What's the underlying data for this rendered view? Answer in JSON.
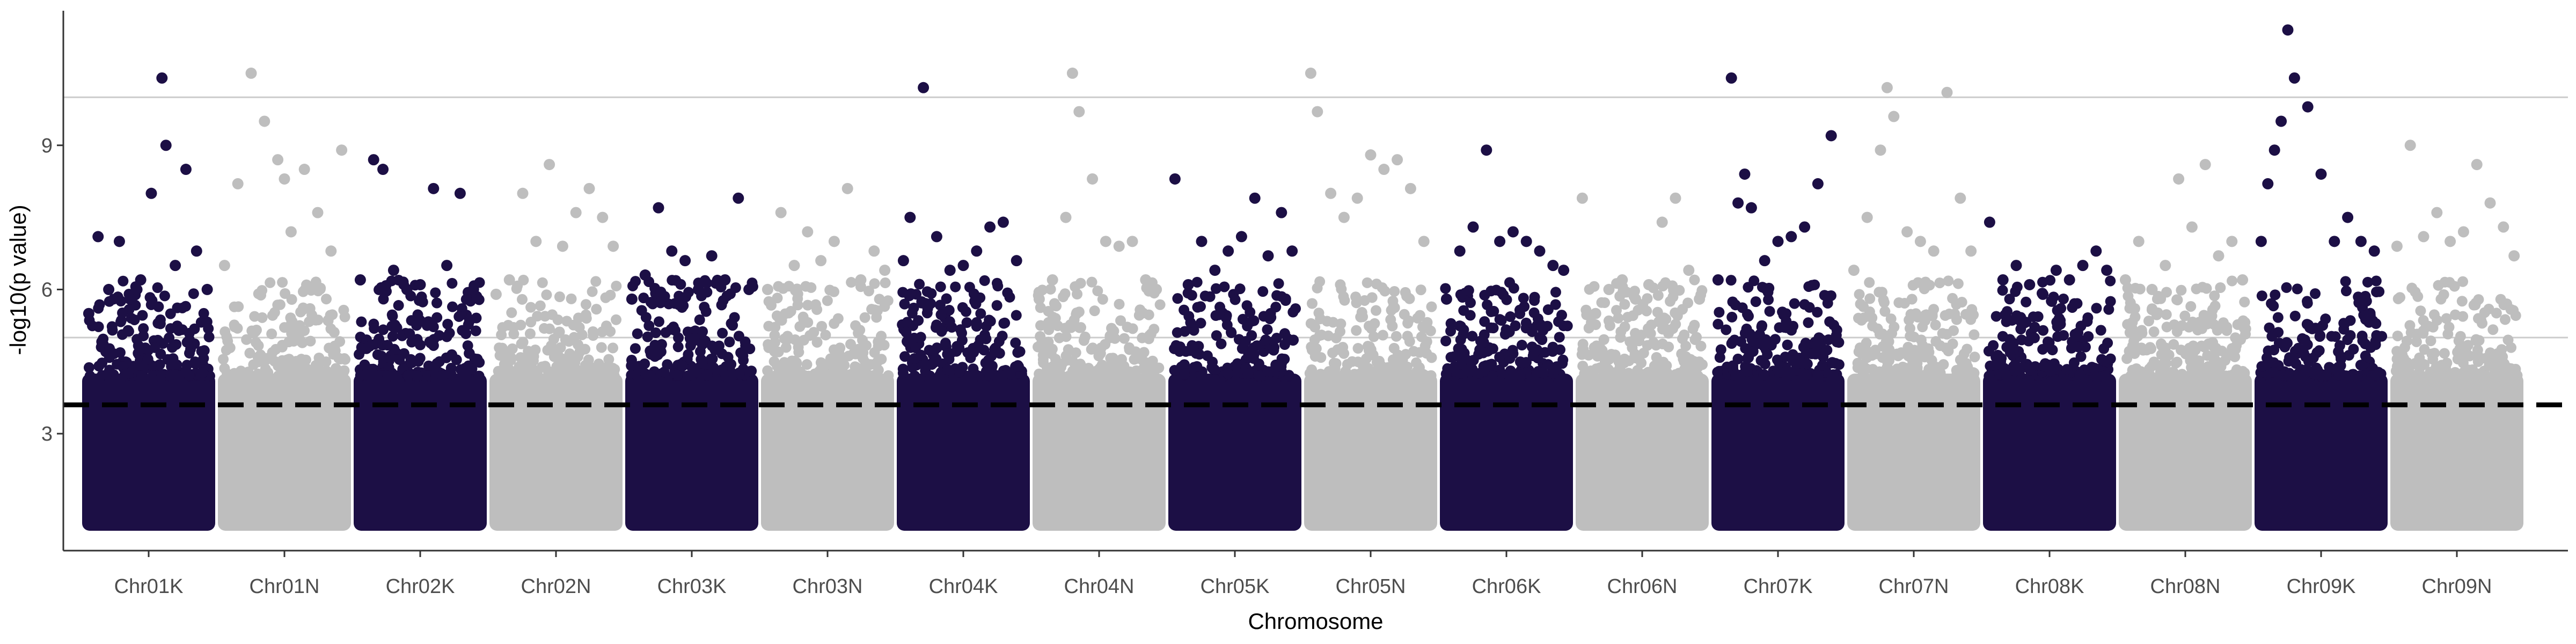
{
  "chart_data": {
    "type": "scatter",
    "subtype": "manhattan",
    "title": "",
    "xlabel": "Chromosome",
    "ylabel": "-log10(p value)",
    "ylim": [
      0.6,
      11.8
    ],
    "yticks": [
      3,
      6,
      9
    ],
    "grid": false,
    "legend": "none",
    "colors": {
      "dark": "#1c0f45",
      "light": "#bebebe"
    },
    "reference_lines": [
      {
        "y": 10,
        "style": "solid",
        "color": "#cccccc"
      },
      {
        "y": 5,
        "style": "solid",
        "color": "#cccccc"
      },
      {
        "y": 3.6,
        "style": "dashed",
        "color": "#000000"
      }
    ],
    "categories": [
      "Chr01K",
      "Chr01N",
      "Chr02K",
      "Chr02N",
      "Chr03K",
      "Chr03N",
      "Chr04K",
      "Chr04N",
      "Chr05K",
      "Chr05N",
      "Chr06K",
      "Chr06N",
      "Chr07K",
      "Chr07N",
      "Chr08K",
      "Chr08N",
      "Chr09K",
      "Chr09N"
    ],
    "series": [
      {
        "name": "Chr01K",
        "color": "dark",
        "x": [
          0.05,
          0.12,
          0.2,
          0.28,
          0.36,
          0.44,
          0.52,
          0.6,
          0.63,
          0.7,
          0.78,
          0.86,
          0.94
        ],
        "y": [
          5.5,
          7.1,
          6.0,
          7.0,
          5.8,
          6.2,
          8.0,
          10.4,
          9.0,
          6.5,
          8.5,
          6.8,
          6.0
        ]
      },
      {
        "name": "Chr01N",
        "color": "light",
        "x": [
          0.05,
          0.15,
          0.25,
          0.35,
          0.45,
          0.5,
          0.55,
          0.65,
          0.75,
          0.85,
          0.93
        ],
        "y": [
          6.5,
          8.2,
          10.5,
          9.5,
          8.7,
          8.3,
          7.2,
          8.5,
          7.6,
          6.8,
          8.9
        ]
      },
      {
        "name": "Chr02K",
        "color": "dark",
        "x": [
          0.05,
          0.15,
          0.22,
          0.3,
          0.4,
          0.5,
          0.6,
          0.7,
          0.8,
          0.9
        ],
        "y": [
          6.2,
          8.7,
          8.5,
          6.4,
          6.0,
          6.1,
          8.1,
          6.5,
          8.0,
          6.0
        ]
      },
      {
        "name": "Chr02N",
        "color": "light",
        "x": [
          0.05,
          0.15,
          0.25,
          0.35,
          0.45,
          0.55,
          0.65,
          0.75,
          0.85,
          0.93
        ],
        "y": [
          5.9,
          6.2,
          8.0,
          7.0,
          8.6,
          6.9,
          7.6,
          8.1,
          7.5,
          6.9
        ]
      },
      {
        "name": "Chr03K",
        "color": "dark",
        "x": [
          0.05,
          0.15,
          0.25,
          0.35,
          0.45,
          0.55,
          0.65,
          0.75,
          0.85,
          0.93
        ],
        "y": [
          5.8,
          6.3,
          7.7,
          6.8,
          6.6,
          6.0,
          6.7,
          6.2,
          7.9,
          6.0
        ]
      },
      {
        "name": "Chr03N",
        "color": "light",
        "x": [
          0.05,
          0.15,
          0.25,
          0.35,
          0.45,
          0.55,
          0.65,
          0.75,
          0.85,
          0.93
        ],
        "y": [
          6.0,
          7.6,
          6.5,
          7.2,
          6.6,
          7.0,
          8.1,
          6.2,
          6.8,
          6.4
        ]
      },
      {
        "name": "Chr04K",
        "color": "dark",
        "x": [
          0.05,
          0.1,
          0.2,
          0.3,
          0.4,
          0.5,
          0.6,
          0.7,
          0.8,
          0.9
        ],
        "y": [
          6.6,
          7.5,
          10.2,
          7.1,
          6.4,
          6.5,
          6.8,
          7.3,
          7.4,
          6.6
        ]
      },
      {
        "name": "Chr04N",
        "color": "light",
        "x": [
          0.05,
          0.15,
          0.25,
          0.3,
          0.35,
          0.45,
          0.55,
          0.65,
          0.75,
          0.85,
          0.93
        ],
        "y": [
          5.8,
          6.2,
          7.5,
          10.5,
          9.7,
          8.3,
          7.0,
          6.9,
          7.0,
          6.2,
          6.0
        ]
      },
      {
        "name": "Chr05K",
        "color": "dark",
        "x": [
          0.05,
          0.15,
          0.25,
          0.35,
          0.45,
          0.55,
          0.65,
          0.75,
          0.85,
          0.93
        ],
        "y": [
          8.3,
          6.1,
          7.0,
          6.4,
          6.8,
          7.1,
          7.9,
          6.7,
          7.6,
          6.8
        ]
      },
      {
        "name": "Chr05N",
        "color": "light",
        "x": [
          0.05,
          0.1,
          0.2,
          0.3,
          0.4,
          0.5,
          0.6,
          0.7,
          0.8,
          0.9
        ],
        "y": [
          10.5,
          9.7,
          8.0,
          7.5,
          7.9,
          8.8,
          8.5,
          8.7,
          8.1,
          7.0
        ]
      },
      {
        "name": "Chr06K",
        "color": "dark",
        "x": [
          0.05,
          0.15,
          0.25,
          0.35,
          0.45,
          0.55,
          0.65,
          0.75,
          0.85,
          0.93
        ],
        "y": [
          5.8,
          6.8,
          7.3,
          8.9,
          7.0,
          7.2,
          7.0,
          6.8,
          6.5,
          6.4
        ]
      },
      {
        "name": "Chr06N",
        "color": "light",
        "x": [
          0.05,
          0.15,
          0.25,
          0.35,
          0.45,
          0.55,
          0.65,
          0.75,
          0.85,
          0.93
        ],
        "y": [
          7.9,
          5.5,
          6.0,
          6.2,
          5.8,
          6.1,
          7.4,
          7.9,
          6.4,
          5.8
        ]
      },
      {
        "name": "Chr07K",
        "color": "dark",
        "x": [
          0.05,
          0.15,
          0.2,
          0.25,
          0.3,
          0.4,
          0.5,
          0.6,
          0.7,
          0.8,
          0.9
        ],
        "y": [
          6.2,
          10.4,
          7.8,
          8.4,
          7.7,
          6.6,
          7.0,
          7.1,
          7.3,
          8.2,
          9.2
        ]
      },
      {
        "name": "Chr07N",
        "color": "light",
        "x": [
          0.05,
          0.15,
          0.25,
          0.3,
          0.35,
          0.45,
          0.55,
          0.65,
          0.75,
          0.85,
          0.93
        ],
        "y": [
          6.4,
          7.5,
          8.9,
          10.2,
          9.6,
          7.2,
          7.0,
          6.8,
          10.1,
          7.9,
          6.8
        ]
      },
      {
        "name": "Chr08K",
        "color": "dark",
        "x": [
          0.05,
          0.15,
          0.25,
          0.35,
          0.45,
          0.55,
          0.65,
          0.75,
          0.85,
          0.93
        ],
        "y": [
          7.4,
          6.2,
          6.5,
          6.1,
          5.9,
          6.4,
          6.2,
          6.5,
          6.8,
          6.4
        ]
      },
      {
        "name": "Chr08N",
        "color": "light",
        "x": [
          0.05,
          0.15,
          0.25,
          0.35,
          0.45,
          0.55,
          0.65,
          0.75,
          0.85,
          0.93
        ],
        "y": [
          6.2,
          7.0,
          6.0,
          6.5,
          8.3,
          7.3,
          8.6,
          6.7,
          7.0,
          6.2
        ]
      },
      {
        "name": "Chr09K",
        "color": "dark",
        "x": [
          0.05,
          0.1,
          0.15,
          0.2,
          0.25,
          0.3,
          0.4,
          0.5,
          0.6,
          0.7,
          0.8,
          0.9
        ],
        "y": [
          7.0,
          8.2,
          8.9,
          9.5,
          11.4,
          10.4,
          9.8,
          8.4,
          7.0,
          7.5,
          7.0,
          6.8
        ]
      },
      {
        "name": "Chr09N",
        "color": "light",
        "x": [
          0.05,
          0.15,
          0.25,
          0.35,
          0.45,
          0.55,
          0.65,
          0.75,
          0.85,
          0.93
        ],
        "y": [
          6.9,
          9.0,
          7.1,
          7.6,
          7.0,
          7.2,
          8.6,
          7.8,
          7.3,
          6.7
        ]
      }
    ]
  }
}
